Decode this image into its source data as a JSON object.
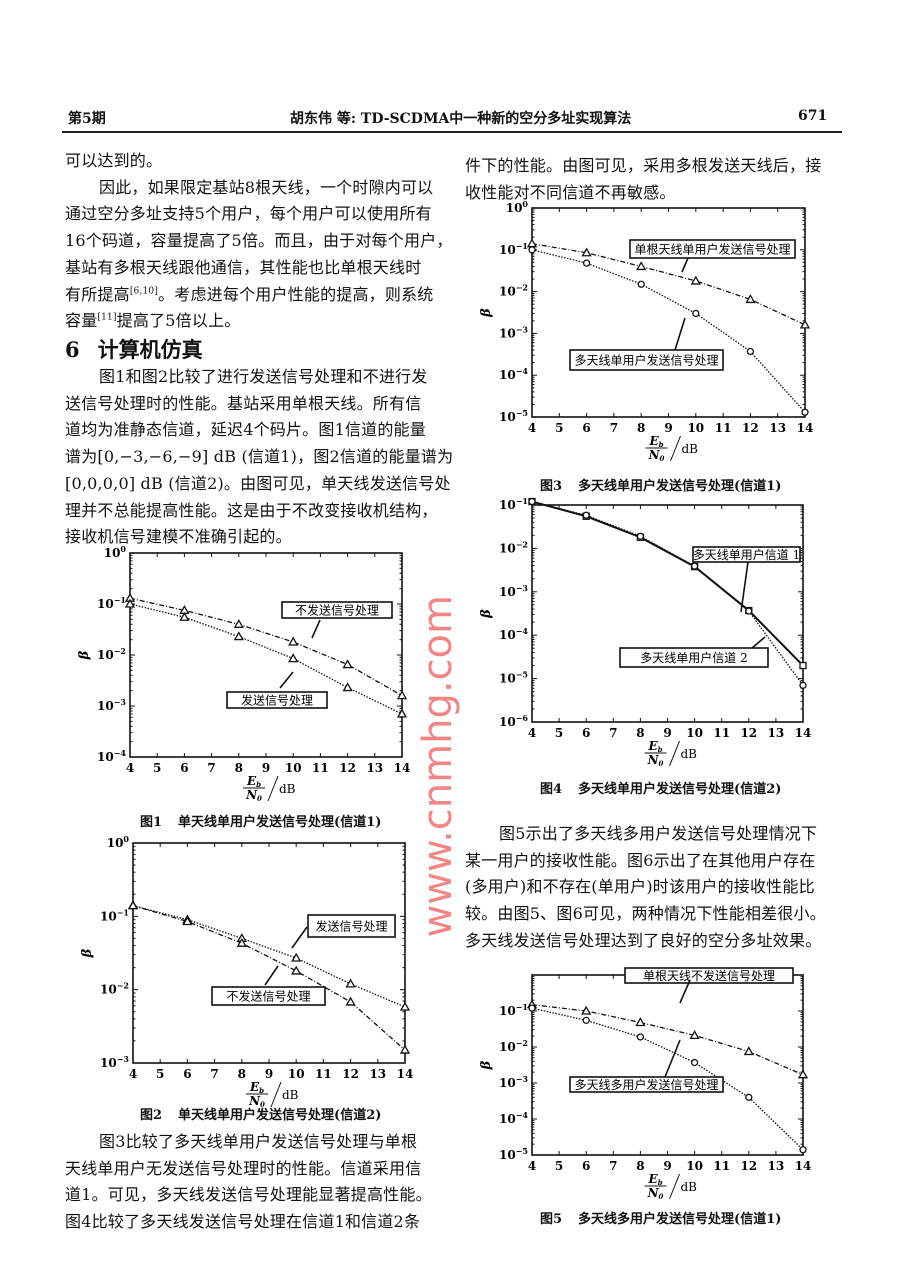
{
  "header": {
    "issue": "第5期",
    "title": "胡东伟 等:  TD-SCDMA中一种新的空分多址实现算法",
    "page_number": "671"
  },
  "left_top_lines": [
    {
      "text": "可以达到的。"
    },
    {
      "text": "因此，如果限定基站8根天线，一个时隙内可以",
      "indent": true
    },
    {
      "text": "通过空分多址支持5个用户，每个用户可以使用所有"
    },
    {
      "text": "16个码道，容量提高了5倍。而且，由于对每个用户，"
    },
    {
      "text": "基站有多根天线跟他通信，其性能也比单根天线时"
    },
    {
      "text": "有所提高",
      "sup": "[6,10]",
      "after": "。考虑进每个用户性能的提高，则系统"
    },
    {
      "text": "容量",
      "sup": "[11]",
      "after": "提高了5倍以上。"
    }
  ],
  "section": {
    "number": "6",
    "title": "计算机仿真"
  },
  "left_mid_lines": [
    {
      "text": "图1和图2比较了进行发送信号处理和不进行发",
      "indent": true
    },
    {
      "text": "送信号处理时的性能。基站采用单根天线。所有信"
    },
    {
      "text": "道均为准静态信道，延迟4个码片。图1信道的能量"
    },
    {
      "text": "谱为[0,−3,−6,−9] dB (信道1)，图2信道的能量谱为"
    },
    {
      "text": "[0,0,0,0] dB (信道2)。由图可见，单天线发送信号处"
    },
    {
      "text": "理并不总能提高性能。这是由于不改变接收机结构，"
    },
    {
      "text": "接收机信号建模不准确引起的。"
    }
  ],
  "left_bottom_lines": [
    {
      "text": "图3比较了多天线单用户发送信号处理与单根",
      "indent": true
    },
    {
      "text": "天线单用户无发送信号处理时的性能。信道采用信"
    },
    {
      "text": "道1。可见，多天线发送信号处理能显著提高性能。"
    },
    {
      "text": "图4比较了多天线发送信号处理在信道1和信道2条"
    }
  ],
  "right_top_lines": [
    {
      "text": "件下的性能。由图可见，采用多根发送天线后，接"
    },
    {
      "text": "收性能对不同信道不再敏感。"
    }
  ],
  "right_mid_lines": [
    {
      "text": "图5示出了多天线多用户发送信号处理情况下",
      "indent": true
    },
    {
      "text": "某一用户的接收性能。图6示出了在其他用户存在"
    },
    {
      "text": "(多用户)和不存在(单用户)时该用户的接收性能比"
    },
    {
      "text": "较。由图5、图6可见，两种情况下性能相差很小。"
    },
    {
      "text": "多天线发送信号处理达到了良好的空分多址效果。"
    }
  ],
  "watermark": "www.cnmhg.com",
  "chart_data": [
    {
      "type": "line",
      "figure": "图1",
      "title": "单天线单用户发送信号处理(信道1)",
      "ylabel": "β",
      "xlabel": {
        "num": "E",
        "num_sub": "b",
        "den": "N",
        "den_sub": "0",
        "unit": "dB"
      },
      "x": [
        4,
        6,
        8,
        10,
        12,
        14
      ],
      "xlim": [
        4,
        14
      ],
      "xticks": [
        4,
        5,
        6,
        7,
        8,
        9,
        10,
        11,
        12,
        13,
        14
      ],
      "yscale": "log",
      "ylim": [
        0.0001,
        1
      ],
      "yticks_exp": [
        0,
        -1,
        -2,
        -3,
        -4
      ],
      "grid": false,
      "series": [
        {
          "name": "不发送信号处理",
          "marker": "triangle",
          "linestyle": "dashdot",
          "values": [
            0.13,
            0.075,
            0.04,
            0.018,
            0.0065,
            0.0016
          ]
        },
        {
          "name": "发送信号处理",
          "marker": "triangle",
          "linestyle": "dotted",
          "values": [
            0.1,
            0.055,
            0.023,
            0.0085,
            0.0023,
            0.0007
          ]
        }
      ]
    },
    {
      "type": "line",
      "figure": "图2",
      "title": "单天线单用户发送信号处理(信道2)",
      "ylabel": "β",
      "xlabel": {
        "num": "E",
        "num_sub": "b",
        "den": "N",
        "den_sub": "0",
        "unit": "dB"
      },
      "x": [
        4,
        6,
        8,
        10,
        12,
        14
      ],
      "xlim": [
        4,
        14
      ],
      "xticks": [
        4,
        5,
        6,
        7,
        8,
        9,
        10,
        11,
        12,
        13,
        14
      ],
      "yscale": "log",
      "ylim": [
        0.001,
        1
      ],
      "yticks_exp": [
        0,
        -1,
        -2,
        -3
      ],
      "grid": false,
      "series": [
        {
          "name": "发送信号处理",
          "marker": "triangle",
          "linestyle": "dotted",
          "values": [
            0.14,
            0.09,
            0.05,
            0.027,
            0.012,
            0.0058
          ]
        },
        {
          "name": "不发送信号处理",
          "marker": "triangle",
          "linestyle": "dashdot",
          "values": [
            0.14,
            0.085,
            0.043,
            0.018,
            0.0068,
            0.0015
          ]
        }
      ]
    },
    {
      "type": "line",
      "figure": "图3",
      "title": "多天线单用户发送信号处理(信道1)",
      "ylabel": "β",
      "xlabel": {
        "num": "E",
        "num_sub": "b",
        "den": "N",
        "den_sub": "0",
        "unit": "dB"
      },
      "x": [
        4,
        6,
        8,
        10,
        12,
        14
      ],
      "xlim": [
        4,
        14
      ],
      "xticks": [
        4,
        5,
        6,
        7,
        8,
        9,
        10,
        11,
        12,
        13,
        14
      ],
      "yscale": "log",
      "ylim": [
        1e-05,
        1
      ],
      "yticks_exp": [
        0,
        -1,
        -2,
        -3,
        -4,
        -5
      ],
      "grid": false,
      "series": [
        {
          "name": "单根天线单用户发送信号处理",
          "marker": "triangle",
          "linestyle": "dashdot",
          "values": [
            0.14,
            0.085,
            0.04,
            0.018,
            0.0065,
            0.0016
          ]
        },
        {
          "name": "多天线单用户发送信号处理",
          "marker": "circle",
          "linestyle": "dotted",
          "values": [
            0.1,
            0.048,
            0.015,
            0.003,
            0.00037,
            1.3e-05
          ]
        }
      ]
    },
    {
      "type": "line",
      "figure": "图4",
      "title": "多天线单用户发送信号处理(信道2)",
      "ylabel": "β",
      "xlabel": {
        "num": "E",
        "num_sub": "b",
        "den": "N",
        "den_sub": "0",
        "unit": "dB"
      },
      "x": [
        4,
        6,
        8,
        10,
        12,
        14
      ],
      "xlim": [
        4,
        14
      ],
      "xticks": [
        4,
        5,
        6,
        7,
        8,
        9,
        10,
        11,
        12,
        13,
        14
      ],
      "yscale": "log",
      "ylim": [
        1e-06,
        0.1
      ],
      "yticks_exp": [
        -1,
        -2,
        -3,
        -4,
        -5,
        -6
      ],
      "grid": false,
      "series": [
        {
          "name": "多天线单用户信道 1",
          "marker": "square",
          "linestyle": "solid",
          "values": [
            0.12,
            0.055,
            0.018,
            0.0038,
            0.00037,
            2e-05
          ]
        },
        {
          "name": "多天线单用户信道 2",
          "marker": "circle",
          "linestyle": "dotted",
          "values": [
            0.12,
            0.058,
            0.019,
            0.0039,
            0.00036,
            7e-06
          ]
        }
      ]
    },
    {
      "type": "line",
      "figure": "图5",
      "title": "多天线多用户发送信号处理(信道1)",
      "ylabel": "β",
      "xlabel": {
        "num": "E",
        "num_sub": "b",
        "den": "N",
        "den_sub": "0",
        "unit": "dB"
      },
      "x": [
        4,
        6,
        8,
        10,
        12,
        14
      ],
      "xlim": [
        4,
        14
      ],
      "xticks": [
        4,
        5,
        6,
        7,
        8,
        9,
        10,
        11,
        12,
        13,
        14
      ],
      "yscale": "log",
      "ylim": [
        1e-05,
        1
      ],
      "yticks_exp": [
        -1,
        -2,
        -3,
        -4,
        -5
      ],
      "grid": false,
      "series": [
        {
          "name": "单根天线不发送信号处理",
          "marker": "triangle",
          "linestyle": "dashdot",
          "values": [
            0.15,
            0.1,
            0.048,
            0.021,
            0.0075,
            0.0017
          ]
        },
        {
          "name": "多天线多用户发送信号处理",
          "marker": "circle",
          "linestyle": "dotted",
          "values": [
            0.12,
            0.055,
            0.019,
            0.0037,
            0.0004,
            1.4e-05
          ]
        }
      ]
    }
  ]
}
